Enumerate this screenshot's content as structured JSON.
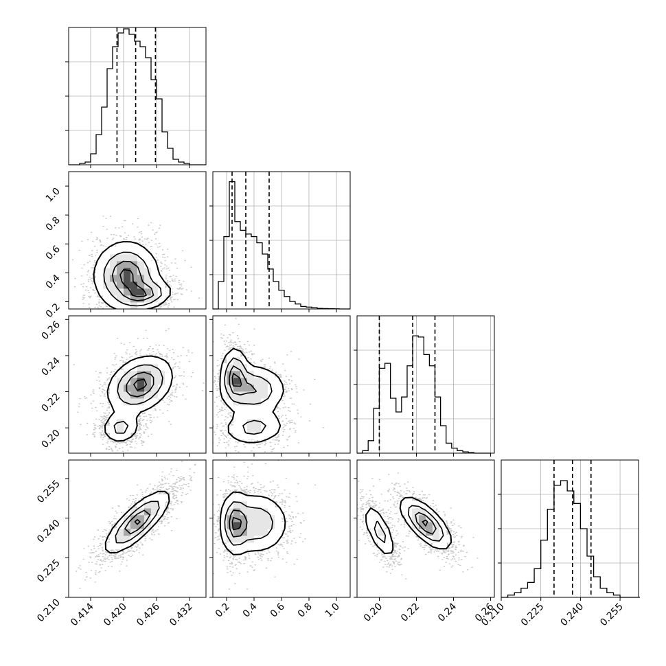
{
  "chart_data": {
    "type": "corner",
    "parameters": 4,
    "grid": true,
    "styles": {
      "frame": "#000000",
      "grid": "#b0b0b0",
      "quantile": "#000000",
      "points": "#000000"
    },
    "diagonal": [
      {
        "type": "histogram",
        "xlim": [
          0.41,
          0.435
        ],
        "ylim": [
          0,
          1.0
        ],
        "bin_width": 0.001,
        "counts": [
          0,
          0,
          0.01,
          0.02,
          0.08,
          0.22,
          0.42,
          0.7,
          0.86,
          0.96,
          0.99,
          0.95,
          0.9,
          0.86,
          0.78,
          0.62,
          0.48,
          0.24,
          0.12,
          0.04,
          0.02,
          0.01,
          0,
          0,
          0
        ],
        "quantiles": [
          0.4188,
          0.4222,
          0.4258
        ]
      },
      {
        "type": "histogram",
        "xlim": [
          0.1,
          1.1
        ],
        "ylim": [
          0,
          1.1
        ],
        "bin_width": 0.04,
        "counts": [
          0,
          0.22,
          0.58,
          1.02,
          0.7,
          0.63,
          0.6,
          0.58,
          0.53,
          0.44,
          0.32,
          0.22,
          0.15,
          0.1,
          0.06,
          0.04,
          0.02,
          0.015,
          0.01,
          0.005,
          0.003,
          0.002,
          0.001,
          0,
          0
        ],
        "quantiles": [
          0.24,
          0.34,
          0.51
        ]
      },
      {
        "type": "histogram",
        "xlim": [
          0.188,
          0.262
        ],
        "ylim": [
          0,
          1.1
        ],
        "bin_width": 0.003,
        "counts": [
          0,
          0.02,
          0.1,
          0.36,
          0.68,
          0.72,
          0.44,
          0.33,
          0.45,
          0.7,
          0.94,
          0.93,
          0.79,
          0.7,
          0.45,
          0.22,
          0.08,
          0.04,
          0.02,
          0.01,
          0.005,
          0,
          0,
          0
        ],
        "quantiles": [
          0.2,
          0.218,
          0.23
        ]
      },
      {
        "type": "histogram",
        "xlim": [
          0.21,
          0.262
        ],
        "ylim": [
          0,
          1.2
        ],
        "bin_width": 0.0025,
        "counts": [
          0,
          0.02,
          0.04,
          0.08,
          0.13,
          0.25,
          0.5,
          0.77,
          0.98,
          1.02,
          0.93,
          0.82,
          0.6,
          0.36,
          0.18,
          0.08,
          0.04,
          0.02,
          0,
          0,
          0
        ],
        "quantiles": [
          0.23,
          0.237,
          0.244
        ]
      }
    ],
    "panels": [
      {
        "row": 1,
        "col": 0,
        "xlim": [
          0.41,
          0.435
        ],
        "ylim": [
          0.15,
          1.1
        ],
        "components": [
          {
            "mu": [
              0.4205,
              0.38
            ],
            "sd": [
              0.003,
              0.12
            ],
            "rho": 0.0,
            "w": 0.6
          },
          {
            "mu": [
              0.424,
              0.25
            ],
            "sd": [
              0.0025,
              0.05
            ],
            "rho": 0.2,
            "w": 0.4
          }
        ]
      },
      {
        "row": 2,
        "col": 0,
        "xlim": [
          0.41,
          0.435
        ],
        "ylim": [
          0.186,
          0.262
        ],
        "components": [
          {
            "mu": [
              0.4195,
              0.2
            ],
            "sd": [
              0.0018,
              0.0045
            ],
            "rho": 0.1,
            "w": 0.35
          },
          {
            "mu": [
              0.423,
              0.224
            ],
            "sd": [
              0.003,
              0.008
            ],
            "rho": 0.3,
            "w": 0.65
          }
        ]
      },
      {
        "row": 3,
        "col": 0,
        "xlim": [
          0.41,
          0.435
        ],
        "ylim": [
          0.21,
          0.262
        ],
        "components": [
          {
            "mu": [
              0.4225,
              0.2385
            ],
            "sd": [
              0.003,
              0.006
            ],
            "rho": 0.8,
            "w": 1.0
          }
        ]
      },
      {
        "row": 2,
        "col": 1,
        "xlim": [
          0.1,
          1.1
        ],
        "ylim": [
          0.186,
          0.262
        ],
        "components": [
          {
            "mu": [
              0.26,
              0.229
            ],
            "sd": [
              0.05,
              0.008
            ],
            "rho": 0.0,
            "w": 0.4
          },
          {
            "mu": [
              0.4,
              0.221
            ],
            "sd": [
              0.12,
              0.007
            ],
            "rho": 0.0,
            "w": 0.35
          },
          {
            "mu": [
              0.4,
              0.2
            ],
            "sd": [
              0.12,
              0.005
            ],
            "rho": 0.1,
            "w": 0.25
          }
        ]
      },
      {
        "row": 3,
        "col": 1,
        "xlim": [
          0.1,
          1.1
        ],
        "ylim": [
          0.21,
          0.262
        ],
        "components": [
          {
            "mu": [
              0.26,
              0.238
            ],
            "sd": [
              0.05,
              0.006
            ],
            "rho": 0.0,
            "w": 0.55
          },
          {
            "mu": [
              0.42,
              0.238
            ],
            "sd": [
              0.12,
              0.006
            ],
            "rho": 0.0,
            "w": 0.45
          }
        ]
      },
      {
        "row": 3,
        "col": 2,
        "xlim": [
          0.188,
          0.262
        ],
        "ylim": [
          0.21,
          0.262
        ],
        "components": [
          {
            "mu": [
              0.2,
              0.235
            ],
            "sd": [
              0.0045,
              0.0055
            ],
            "rho": -0.7,
            "w": 0.35
          },
          {
            "mu": [
              0.225,
              0.238
            ],
            "sd": [
              0.007,
              0.005
            ],
            "rho": -0.7,
            "w": 0.65
          }
        ]
      }
    ],
    "x_axes": [
      {
        "col": 0,
        "ticks": [
          0.414,
          0.42,
          0.426,
          0.432
        ],
        "labels": [
          "0.414",
          "0.420",
          "0.426",
          "0.432"
        ]
      },
      {
        "col": 1,
        "ticks": [
          0.2,
          0.4,
          0.6,
          0.8,
          1.0
        ],
        "labels": [
          "0.2",
          "0.4",
          "0.6",
          "0.8",
          "1.0"
        ]
      },
      {
        "col": 2,
        "ticks": [
          0.2,
          0.22,
          0.24,
          0.26
        ],
        "labels": [
          "0.20",
          "0.22",
          "0.24",
          "0.26"
        ]
      },
      {
        "col": 3,
        "ticks": [
          0.21,
          0.225,
          0.24,
          0.255
        ],
        "labels": [
          "0.210",
          "0.225",
          "0.240",
          "0.255"
        ]
      }
    ],
    "y_axes": [
      {
        "row": 1,
        "ticks": [
          0.2,
          0.4,
          0.6,
          0.8,
          1.0
        ],
        "labels": [
          "0.2",
          "0.4",
          "0.6",
          "0.8",
          "1.0"
        ]
      },
      {
        "row": 2,
        "ticks": [
          0.2,
          0.22,
          0.24,
          0.26
        ],
        "labels": [
          "0.20",
          "0.22",
          "0.24",
          "0.26"
        ]
      },
      {
        "row": 3,
        "ticks": [
          0.21,
          0.225,
          0.24,
          0.255
        ],
        "labels": [
          "0.210",
          "0.225",
          "0.240",
          "0.255"
        ]
      }
    ]
  }
}
